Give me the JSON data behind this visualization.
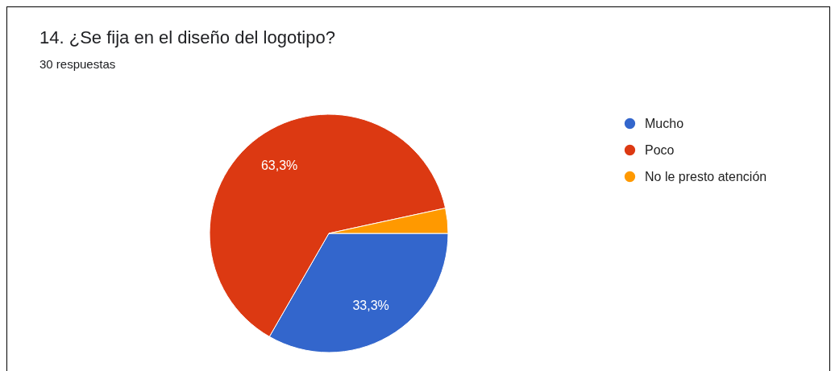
{
  "chart_data": {
    "type": "pie",
    "title": "14. ¿Se fija en el diseño del logotipo?",
    "subtitle": "30 respuestas",
    "categories": [
      "Mucho",
      "Poco",
      "No le presto atención"
    ],
    "values": [
      33.3,
      63.3,
      3.4
    ],
    "colors": [
      "#3366cc",
      "#dc3912",
      "#ff9900"
    ],
    "value_labels": [
      "33,3%",
      "63,3%",
      null
    ],
    "legend": "top right"
  }
}
